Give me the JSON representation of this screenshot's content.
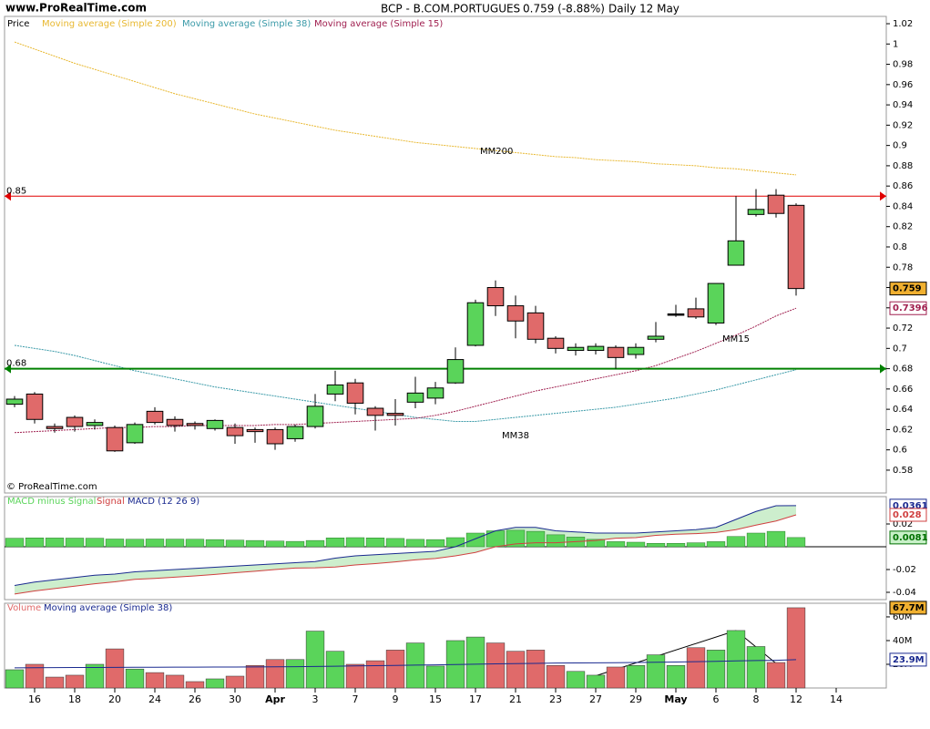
{
  "header": {
    "site": "www.ProRealTime.com",
    "title": "BCP - B.COM.PORTUGUES",
    "quote": "0.759 (-8.88%)",
    "period": "Daily",
    "date": "12 May",
    "copyright": "© ProRealTime.com"
  },
  "chart_data": [
    {
      "type": "candlestick",
      "legend": "Price",
      "up_color": "#5ad45a",
      "down_color": "#e06a6a",
      "open": [
        0.645,
        0.655,
        0.623,
        0.632,
        0.624,
        0.622,
        0.607,
        0.638,
        0.63,
        0.626,
        0.621,
        0.622,
        0.62,
        0.62,
        0.611,
        0.623,
        0.655,
        0.666,
        0.641,
        0.636,
        0.647,
        0.651,
        0.666,
        0.703,
        0.76,
        0.742,
        0.735,
        0.71,
        0.698,
        0.698,
        0.701,
        0.694,
        0.709,
        0.734,
        0.739,
        0.725,
        0.782,
        0.832,
        0.851,
        0.841
      ],
      "high": [
        0.653,
        0.657,
        0.626,
        0.634,
        0.63,
        0.624,
        0.627,
        0.642,
        0.633,
        0.628,
        0.63,
        0.626,
        0.622,
        0.622,
        0.625,
        0.655,
        0.678,
        0.67,
        0.643,
        0.65,
        0.672,
        0.667,
        0.701,
        0.748,
        0.767,
        0.752,
        0.742,
        0.712,
        0.705,
        0.705,
        0.703,
        0.705,
        0.726,
        0.743,
        0.75,
        0.764,
        0.85,
        0.857,
        0.857,
        0.843
      ],
      "low": [
        0.642,
        0.626,
        0.617,
        0.618,
        0.62,
        0.598,
        0.606,
        0.625,
        0.618,
        0.62,
        0.619,
        0.606,
        0.607,
        0.6,
        0.608,
        0.621,
        0.648,
        0.635,
        0.619,
        0.624,
        0.641,
        0.645,
        0.665,
        0.702,
        0.732,
        0.71,
        0.705,
        0.695,
        0.693,
        0.694,
        0.68,
        0.69,
        0.706,
        0.731,
        0.729,
        0.723,
        0.782,
        0.83,
        0.829,
        0.752
      ],
      "close": [
        0.65,
        0.63,
        0.621,
        0.623,
        0.627,
        0.599,
        0.625,
        0.627,
        0.624,
        0.624,
        0.629,
        0.614,
        0.618,
        0.606,
        0.623,
        0.643,
        0.664,
        0.646,
        0.634,
        0.634,
        0.656,
        0.661,
        0.689,
        0.745,
        0.742,
        0.727,
        0.709,
        0.7,
        0.701,
        0.702,
        0.691,
        0.701,
        0.712,
        0.734,
        0.731,
        0.764,
        0.806,
        0.837,
        0.833,
        0.759
      ],
      "series": [
        {
          "name": "Moving average (Simple 200)",
          "color": "#e8b830",
          "values": [
            1.002,
            0.995,
            0.988,
            0.981,
            0.975,
            0.969,
            0.963,
            0.957,
            0.951,
            0.946,
            0.941,
            0.936,
            0.931,
            0.927,
            0.923,
            0.919,
            0.915,
            0.912,
            0.909,
            0.906,
            0.903,
            0.901,
            0.899,
            0.897,
            0.895,
            0.893,
            0.891,
            0.889,
            0.888,
            0.886,
            0.885,
            0.884,
            0.882,
            0.881,
            0.88,
            0.878,
            0.877,
            0.875,
            0.873,
            0.871
          ]
        },
        {
          "name": "Moving average (Simple 38)",
          "color": "#3a9aa8",
          "values": [
            0.703,
            0.7,
            0.697,
            0.693,
            0.688,
            0.683,
            0.678,
            0.674,
            0.67,
            0.666,
            0.662,
            0.659,
            0.656,
            0.653,
            0.65,
            0.647,
            0.644,
            0.641,
            0.638,
            0.635,
            0.632,
            0.63,
            0.628,
            0.628,
            0.63,
            0.632,
            0.634,
            0.636,
            0.638,
            0.64,
            0.642,
            0.645,
            0.648,
            0.651,
            0.655,
            0.659,
            0.664,
            0.669,
            0.674,
            0.679
          ]
        },
        {
          "name": "Moving average (Simple 15)",
          "color": "#a02050",
          "values": [
            0.617,
            0.618,
            0.619,
            0.62,
            0.621,
            0.622,
            0.622,
            0.623,
            0.623,
            0.624,
            0.624,
            0.624,
            0.624,
            0.625,
            0.625,
            0.626,
            0.627,
            0.628,
            0.629,
            0.63,
            0.631,
            0.634,
            0.638,
            0.643,
            0.648,
            0.653,
            0.658,
            0.662,
            0.666,
            0.67,
            0.674,
            0.678,
            0.683,
            0.69,
            0.697,
            0.705,
            0.713,
            0.722,
            0.732,
            0.7396
          ]
        }
      ],
      "hlines": [
        {
          "value": 0.85,
          "color": "#e00000"
        },
        {
          "value": 0.68,
          "color": "#008000"
        }
      ],
      "annotations": [
        "MM200",
        "MM15",
        "MM38"
      ],
      "ylim": [
        0.5575,
        1.0272
      ],
      "yticks": [
        0.58,
        0.6,
        0.62,
        0.64,
        0.66,
        0.68,
        0.7,
        0.72,
        0.74,
        0.76,
        0.78,
        0.8,
        0.82,
        0.84,
        0.86,
        0.88,
        0.9,
        0.92,
        0.94,
        0.96,
        0.98,
        1,
        1.02
      ]
    },
    {
      "type": "macd",
      "ylim": [
        -0.0464,
        0.044
      ],
      "yticks": [
        0.02,
        -0.02,
        -0.04
      ],
      "series": [
        {
          "name": "MACD minus Signal",
          "color": "#5ad45a",
          "values": [
            0.0075,
            0.0078,
            0.0077,
            0.0076,
            0.0075,
            0.0068,
            0.0066,
            0.0068,
            0.0067,
            0.0066,
            0.0063,
            0.0058,
            0.0055,
            0.005,
            0.0047,
            0.0055,
            0.0078,
            0.008,
            0.0078,
            0.0073,
            0.0065,
            0.0063,
            0.008,
            0.012,
            0.014,
            0.0145,
            0.0135,
            0.0105,
            0.0085,
            0.0065,
            0.0045,
            0.004,
            0.003,
            0.003,
            0.0035,
            0.0045,
            0.009,
            0.012,
            0.0135,
            0.0081
          ]
        },
        {
          "name": "Signal",
          "color": "#d04040",
          "values": [
            -0.0415,
            -0.0388,
            -0.0367,
            -0.0346,
            -0.0325,
            -0.0308,
            -0.0286,
            -0.0278,
            -0.0267,
            -0.0256,
            -0.0243,
            -0.0228,
            -0.0215,
            -0.02,
            -0.0187,
            -0.0185,
            -0.0178,
            -0.016,
            -0.0148,
            -0.0133,
            -0.0115,
            -0.0103,
            -0.008,
            -0.005,
            0,
            0.0025,
            0.0035,
            0.0035,
            0.0045,
            0.0055,
            0.0075,
            0.008,
            0.01,
            0.011,
            0.0115,
            0.0125,
            0.015,
            0.019,
            0.0226,
            0.028
          ]
        },
        {
          "name": "MACD (12 26 9)",
          "color": "#1a2a90",
          "values": [
            -0.034,
            -0.031,
            -0.029,
            -0.027,
            -0.025,
            -0.024,
            -0.022,
            -0.021,
            -0.02,
            -0.019,
            -0.018,
            -0.017,
            -0.016,
            -0.015,
            -0.014,
            -0.013,
            -0.01,
            -0.008,
            -0.007,
            -0.006,
            -0.005,
            -0.004,
            0,
            0.007,
            0.014,
            0.017,
            0.017,
            0.014,
            0.013,
            0.012,
            0.012,
            0.012,
            0.013,
            0.014,
            0.015,
            0.017,
            0.024,
            0.031,
            0.036,
            0.0361
          ]
        }
      ]
    },
    {
      "type": "volume",
      "ylim": [
        0,
        71500000
      ],
      "yticks": [
        {
          "value": 20000000,
          "label": "20M"
        },
        {
          "value": 40000000,
          "label": "40M"
        },
        {
          "value": 60000000,
          "label": "60M"
        }
      ],
      "series": [
        {
          "name": "Volume",
          "color": "#e06a6a",
          "values": [
            15400000,
            20000000,
            9200000,
            10800000,
            20000000,
            33000000,
            16000000,
            13000000,
            10800000,
            5400000,
            7700000,
            10000000,
            19000000,
            24000000,
            24000000,
            48000000,
            31000000,
            20000000,
            23000000,
            32000000,
            38000000,
            18500000,
            40000000,
            43000000,
            38000000,
            31000000,
            32000000,
            19000000,
            14000000,
            10800000,
            17700000,
            19000000,
            28000000,
            19000000,
            34000000,
            32000000,
            48500000,
            35000000,
            21500000,
            67700000
          ],
          "value_labels": [
            null,
            null,
            null,
            null,
            null,
            null,
            null,
            null,
            null,
            null,
            null,
            null,
            null,
            null,
            null,
            null,
            null,
            null,
            null,
            null,
            null,
            null,
            null,
            null,
            null,
            null,
            null,
            null,
            null,
            null,
            null,
            null,
            null,
            null,
            null,
            null,
            null,
            null,
            null,
            "67.7M"
          ]
        },
        {
          "name": "Moving average (Simple 38)",
          "color": "#1a2a90",
          "values": [
            17000000,
            17100000,
            17200000,
            17300000,
            17300000,
            17400000,
            17500000,
            17500000,
            17600000,
            17600000,
            17700000,
            17700000,
            17800000,
            17900000,
            18000000,
            18200000,
            18400000,
            18600000,
            18800000,
            19000000,
            19300000,
            19500000,
            19800000,
            20100000,
            20400000,
            20600000,
            20800000,
            21000000,
            21100000,
            21200000,
            21300000,
            21500000,
            21700000,
            21900000,
            22200000,
            22500000,
            22900000,
            23200000,
            23400000,
            23900000
          ],
          "value_labels": [
            null,
            null,
            null,
            null,
            null,
            null,
            null,
            null,
            null,
            null,
            null,
            null,
            null,
            null,
            null,
            null,
            null,
            null,
            null,
            null,
            null,
            null,
            null,
            null,
            null,
            null,
            null,
            null,
            null,
            null,
            null,
            null,
            null,
            null,
            null,
            null,
            null,
            null,
            null,
            "23.9M"
          ]
        }
      ],
      "xlim": [
        -0.5,
        43.5
      ],
      "xticks": [
        {
          "value": 1,
          "label": "16"
        },
        {
          "value": 3,
          "label": "18"
        },
        {
          "value": 5,
          "label": "20"
        },
        {
          "value": 7,
          "label": "24"
        },
        {
          "value": 9,
          "label": "26"
        },
        {
          "value": 11,
          "label": "30"
        },
        {
          "value": 13,
          "label": "Apr"
        },
        {
          "value": 15,
          "label": "3"
        },
        {
          "value": 17,
          "label": "7"
        },
        {
          "value": 19,
          "label": "9"
        },
        {
          "value": 21,
          "label": "15"
        },
        {
          "value": 23,
          "label": "17"
        },
        {
          "value": 25,
          "label": "21"
        },
        {
          "value": 27,
          "label": "23"
        },
        {
          "value": 29,
          "label": "27"
        },
        {
          "value": 31,
          "label": "29"
        },
        {
          "value": 33,
          "label": "May"
        },
        {
          "value": 35,
          "label": "6"
        },
        {
          "value": 37,
          "label": "8"
        },
        {
          "value": 39,
          "label": "12"
        },
        {
          "value": 41,
          "label": "14"
        }
      ]
    }
  ]
}
